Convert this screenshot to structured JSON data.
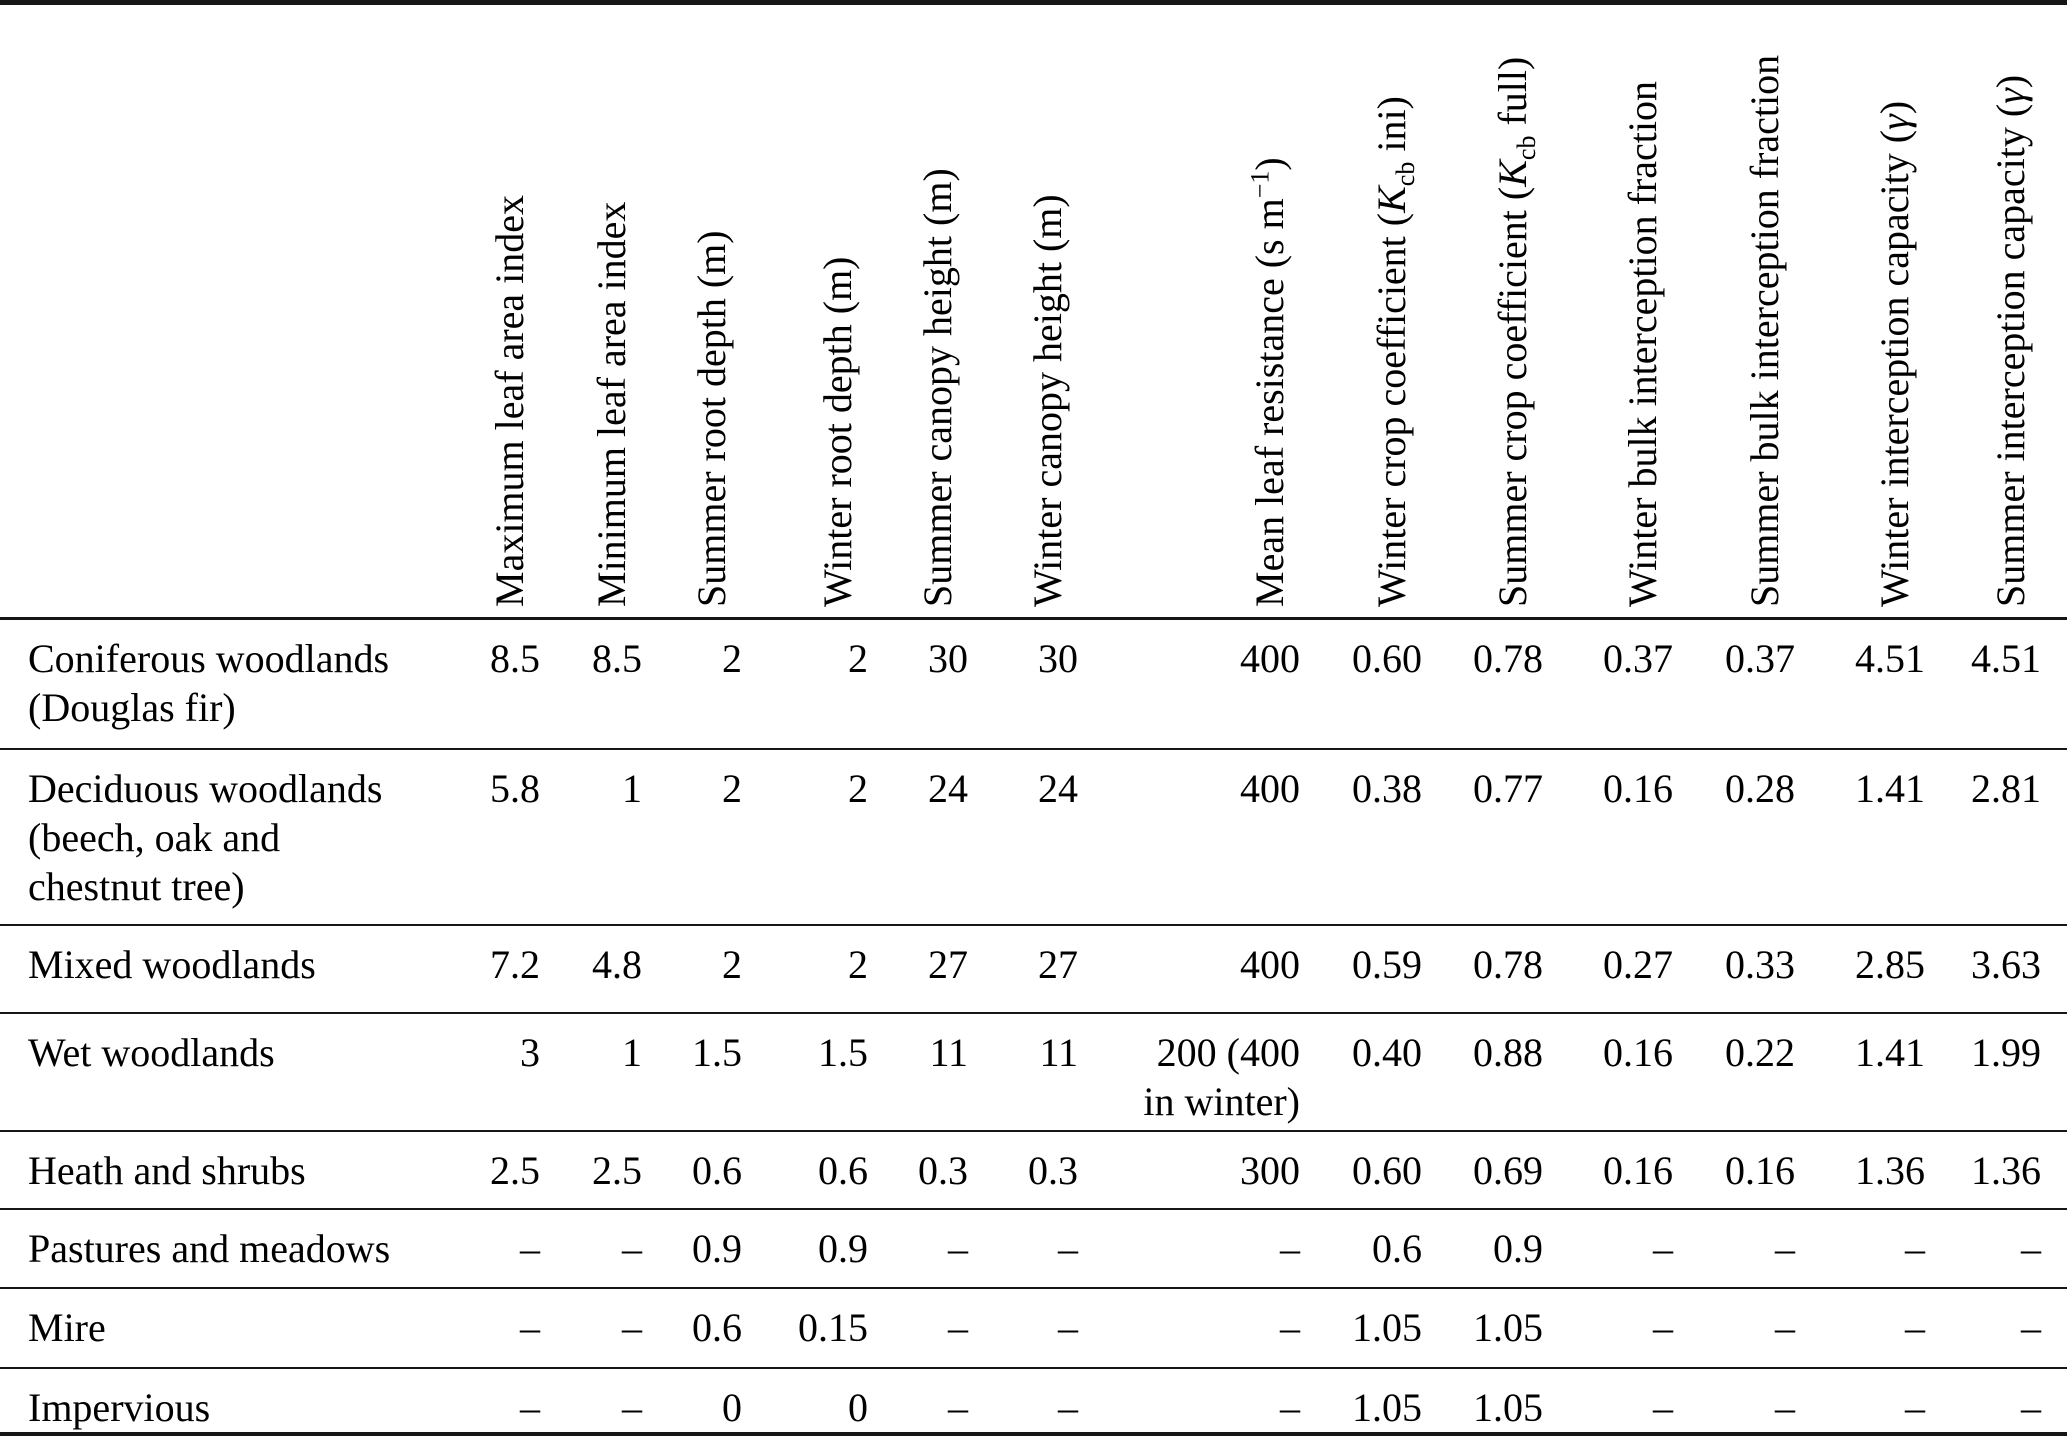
{
  "table": {
    "description": "Vegetation and land-cover parameters table",
    "row_label_header": "",
    "columns": [
      {
        "text": "Maximum leaf area index",
        "parts": [
          {
            "t": "Maximum leaf area index"
          }
        ]
      },
      {
        "text": "Minimum leaf area index",
        "parts": [
          {
            "t": "Minimum leaf area index"
          }
        ]
      },
      {
        "text": "Summer root depth (m)",
        "parts": [
          {
            "t": "Summer root depth (m)"
          }
        ]
      },
      {
        "text": "Winter root depth (m)",
        "parts": [
          {
            "t": "Winter root depth (m)"
          }
        ]
      },
      {
        "text": "Summer canopy height (m)",
        "parts": [
          {
            "t": "Summer canopy height (m)"
          }
        ]
      },
      {
        "text": "Winter canopy height (m)",
        "parts": [
          {
            "t": "Winter canopy height (m)"
          }
        ]
      },
      {
        "text": "Mean leaf resistance (s m−1)",
        "parts": [
          {
            "t": "Mean leaf resistance (s m"
          },
          {
            "sup": "−1"
          },
          {
            "t": ")"
          }
        ]
      },
      {
        "text": "Winter crop coefficient (Kcb ini)",
        "parts": [
          {
            "t": "Winter crop coefficient ("
          },
          {
            "i": "K"
          },
          {
            "sub": "cb"
          },
          {
            "t": " ini)"
          }
        ]
      },
      {
        "text": "Summer crop coefficient (Kcb full)",
        "parts": [
          {
            "t": "Summer crop coefficient ("
          },
          {
            "i": "K"
          },
          {
            "sub": "cb"
          },
          {
            "t": " full)"
          }
        ]
      },
      {
        "text": "Winter bulk interception fraction",
        "parts": [
          {
            "t": "Winter bulk interception fraction"
          }
        ]
      },
      {
        "text": "Summer bulk interception fraction",
        "parts": [
          {
            "t": "Summer bulk interception fraction"
          }
        ]
      },
      {
        "text": "Winter interception capacity (γ)",
        "parts": [
          {
            "t": "Winter interception capacity ("
          },
          {
            "i": "γ"
          },
          {
            "t": ")"
          }
        ]
      },
      {
        "text": "Summer interception capacity (γ)",
        "parts": [
          {
            "t": "Summer interception capacity ("
          },
          {
            "i": "γ"
          },
          {
            "t": ")"
          }
        ]
      }
    ],
    "rows": [
      {
        "label": "Coniferous woodlands\n(Douglas fir)",
        "values": [
          "8.5",
          "8.5",
          "2",
          "2",
          "30",
          "30",
          "400",
          "0.60",
          "0.78",
          "0.37",
          "0.37",
          "4.51",
          "4.51"
        ]
      },
      {
        "label": "Deciduous woodlands\n(beech, oak and\nchestnut tree)",
        "values": [
          "5.8",
          "1",
          "2",
          "2",
          "24",
          "24",
          "400",
          "0.38",
          "0.77",
          "0.16",
          "0.28",
          "1.41",
          "2.81"
        ]
      },
      {
        "label": "Mixed woodlands",
        "values": [
          "7.2",
          "4.8",
          "2",
          "2",
          "27",
          "27",
          "400",
          "0.59",
          "0.78",
          "0.27",
          "0.33",
          "2.85",
          "3.63"
        ]
      },
      {
        "label": "Wet woodlands",
        "values": [
          "3",
          "1",
          "1.5",
          "1.5",
          "11",
          "11",
          "200 (400\nin winter)",
          "0.40",
          "0.88",
          "0.16",
          "0.22",
          "1.41",
          "1.99"
        ]
      },
      {
        "label": "Heath and shrubs",
        "values": [
          "2.5",
          "2.5",
          "0.6",
          "0.6",
          "0.3",
          "0.3",
          "300",
          "0.60",
          "0.69",
          "0.16",
          "0.16",
          "1.36",
          "1.36"
        ]
      },
      {
        "label": "Pastures and meadows",
        "values": [
          "–",
          "–",
          "0.9",
          "0.9",
          "–",
          "–",
          "–",
          "0.6",
          "0.9",
          "–",
          "–",
          "–",
          "–"
        ]
      },
      {
        "label": "Mire",
        "values": [
          "–",
          "–",
          "0.6",
          "0.15",
          "–",
          "–",
          "–",
          "1.05",
          "1.05",
          "–",
          "–",
          "–",
          "–"
        ]
      },
      {
        "label": "Impervious",
        "values": [
          "–",
          "–",
          "0",
          "0",
          "–",
          "–",
          "–",
          "1.05",
          "1.05",
          "–",
          "–",
          "–",
          "–"
        ]
      }
    ]
  }
}
